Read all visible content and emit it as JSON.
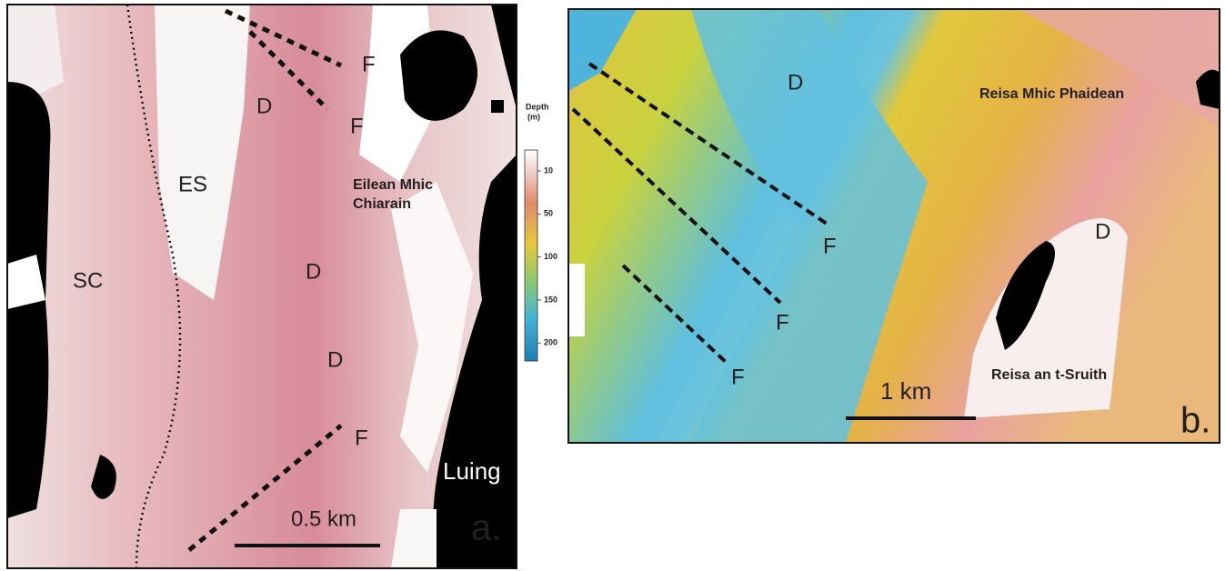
{
  "panel_a": {
    "labels": [
      "F",
      "F",
      "D",
      "ES",
      "Eilean Mhic",
      "Chiarain",
      "D",
      "SC",
      "D",
      "F",
      "Luing"
    ],
    "scale_bar": "0.5 km",
    "panel_label": "a."
  },
  "color_scale": {
    "title": "Depth",
    "unit": "(m)",
    "ticks": [
      10,
      50,
      100,
      150,
      200
    ]
  },
  "panel_b": {
    "labels": [
      "D",
      "Reisa Mhic Phaidean",
      "D",
      "F",
      "F",
      "F",
      "Reisa an t-Sruith"
    ],
    "scale_bar": "1 km",
    "panel_label": "b."
  }
}
